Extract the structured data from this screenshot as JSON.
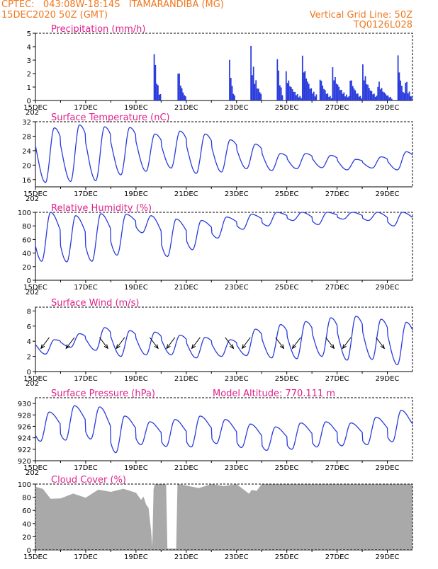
{
  "header": {
    "line1": "CPTEC:   043:08W-18:14S   ITAMARANDIBA (MG)",
    "line2": "15DEC2020 50Z (GMT)",
    "grid_note": "Vertical Grid Line: 50Z",
    "run_id": "TQ0126L028"
  },
  "colors": {
    "series": "#2a3bdc",
    "title": "#e0208c",
    "header": "#f07820",
    "cloud": "#a9a9a9"
  },
  "x_axis": {
    "tick_labels": [
      "15DEC",
      "17DEC",
      "19DEC",
      "21DEC",
      "23DEC",
      "25DEC",
      "27DEC",
      "29DEC"
    ],
    "sub_label": "202"
  },
  "chart_data": [
    {
      "id": "precip",
      "type": "bar",
      "title": "Precipitation (mm/h)",
      "ylim": [
        0,
        5
      ],
      "yticks": [
        0,
        1,
        2,
        3,
        4,
        5
      ],
      "x_days": [
        0,
        15
      ],
      "bursts": [
        {
          "start": 4.7,
          "end": 4.95,
          "peak": 4.3
        },
        {
          "start": 5.65,
          "end": 5.95,
          "peak": 3.0
        },
        {
          "start": 7.7,
          "end": 7.9,
          "peak": 3.5
        },
        {
          "start": 8.55,
          "end": 9.0,
          "peak": 4.1
        },
        {
          "start": 9.6,
          "end": 9.85,
          "peak": 3.7
        },
        {
          "start": 9.95,
          "end": 10.6,
          "peak": 2.2
        },
        {
          "start": 10.6,
          "end": 11.2,
          "peak": 3.4
        },
        {
          "start": 11.3,
          "end": 11.8,
          "peak": 2.0
        },
        {
          "start": 11.8,
          "end": 12.5,
          "peak": 2.5
        },
        {
          "start": 12.5,
          "end": 13.0,
          "peak": 2.0
        },
        {
          "start": 13.0,
          "end": 13.6,
          "peak": 2.7
        },
        {
          "start": 13.6,
          "end": 14.2,
          "peak": 1.7
        },
        {
          "start": 14.4,
          "end": 14.7,
          "peak": 3.6
        },
        {
          "start": 14.7,
          "end": 15.0,
          "peak": 2.0
        }
      ]
    },
    {
      "id": "temp",
      "type": "line",
      "title": "Surface Temperature (nC)",
      "ylim": [
        14,
        32
      ],
      "yticks": [
        16,
        20,
        24,
        28,
        32
      ],
      "x_days": [
        0,
        15
      ],
      "daily_max": [
        30.3,
        31.1,
        30.6,
        30.4,
        28.6,
        29.4,
        28.6,
        27.0,
        25.8,
        23.2,
        23.2,
        22.7,
        21.6,
        22.3,
        23.7
      ],
      "daily_min": [
        15.2,
        15.5,
        15.7,
        17.3,
        18.3,
        19.2,
        17.7,
        18.1,
        19.0,
        18.5,
        19.0,
        19.3,
        18.7,
        19.2,
        18.7
      ]
    },
    {
      "id": "rh",
      "type": "line",
      "title": "Relative Humidity (%)",
      "ylim": [
        0,
        100
      ],
      "yticks": [
        0,
        20,
        40,
        60,
        80,
        100
      ],
      "x_days": [
        0,
        15
      ],
      "daily_max": [
        100,
        95,
        98,
        97,
        95,
        90,
        88,
        93,
        97,
        100,
        100,
        100,
        100,
        100,
        100
      ],
      "daily_min": [
        28,
        27,
        28,
        37,
        70,
        35,
        45,
        62,
        75,
        80,
        88,
        82,
        90,
        88,
        80
      ]
    },
    {
      "id": "wind",
      "type": "line",
      "title": "Surface Wind (m/s)",
      "ylim": [
        0,
        8.5
      ],
      "yticks": [
        0,
        2,
        4,
        6,
        8
      ],
      "x_days": [
        0,
        15
      ],
      "daily_max": [
        4.2,
        5.0,
        5.8,
        5.4,
        5.2,
        4.8,
        4.5,
        4.2,
        5.6,
        6.2,
        6.6,
        7.1,
        7.3,
        6.9,
        6.5
      ],
      "daily_min": [
        2.3,
        3.2,
        2.8,
        2.0,
        2.2,
        2.2,
        1.8,
        2.0,
        2.1,
        1.8,
        1.7,
        2.0,
        1.5,
        1.6,
        0.9
      ],
      "arrow_directions_deg": [
        225,
        225,
        315,
        225,
        315,
        225,
        225,
        315,
        225,
        315,
        225,
        315,
        225,
        315
      ]
    },
    {
      "id": "press",
      "type": "line",
      "title": "Surface Pressure (hPa)",
      "annotation": "Model Altitude: 770.111 m",
      "ylim": [
        920,
        931
      ],
      "yticks": [
        920,
        922,
        924,
        926,
        928,
        930
      ],
      "x_days": [
        0,
        15
      ],
      "daily_max": [
        928.5,
        929.6,
        929.4,
        927.8,
        926.8,
        927.2,
        927.8,
        927.2,
        926.4,
        925.9,
        926.6,
        926.8,
        926.6,
        927.6,
        928.8
      ],
      "daily_min": [
        923.4,
        923.6,
        923.8,
        921.4,
        922.8,
        922.5,
        922.4,
        923.0,
        922.3,
        921.8,
        922.0,
        922.4,
        922.6,
        922.8,
        923.3
      ]
    },
    {
      "id": "cloud",
      "type": "area",
      "title": "Cloud Cover (%)",
      "ylim": [
        0,
        100
      ],
      "yticks": [
        0,
        20,
        40,
        60,
        80,
        100
      ],
      "x_days": [
        0,
        15
      ],
      "x": [
        0,
        0.3,
        0.6,
        1.0,
        1.5,
        2.0,
        2.5,
        3.0,
        3.5,
        4.0,
        4.2,
        4.3,
        4.4,
        4.5,
        4.6,
        4.65,
        4.7,
        4.75,
        5.15,
        5.2,
        5.25,
        5.6,
        5.65,
        5.7,
        6.5,
        7.0,
        7.5,
        8.0,
        8.5,
        8.6,
        8.8,
        9.0,
        9.5,
        10.0,
        11.0,
        12.0,
        13.0,
        14.0,
        15.0
      ],
      "y": [
        96,
        90,
        75,
        78,
        88,
        82,
        92,
        86,
        90,
        86,
        78,
        84,
        70,
        62,
        30,
        5,
        94,
        100,
        100,
        98,
        2,
        2,
        100,
        100,
        96,
        100,
        94,
        98,
        86,
        94,
        92,
        100,
        100,
        100,
        100,
        100,
        100,
        100,
        100
      ]
    }
  ]
}
